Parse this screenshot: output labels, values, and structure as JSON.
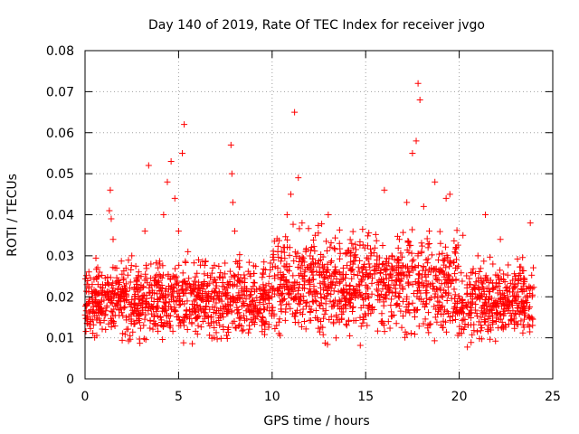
{
  "chart_data": {
    "type": "scatter",
    "title": "Day 140 of 2019, Rate Of TEC Index for receiver jvgo",
    "xlabel": "GPS time / hours",
    "ylabel": "ROTI / TECUs",
    "xlim": [
      0,
      25
    ],
    "ylim": [
      0,
      0.08
    ],
    "xticks": [
      0,
      5,
      10,
      15,
      20,
      25
    ],
    "xtick_labels": [
      "0",
      "5",
      "10",
      "15",
      "20",
      "25"
    ],
    "yticks": [
      0,
      0.01,
      0.02,
      0.03,
      0.04,
      0.05,
      0.06,
      0.07,
      0.08
    ],
    "ytick_labels": [
      "0",
      "0.01",
      "0.02",
      "0.03",
      "0.04",
      "0.05",
      "0.06",
      "0.07",
      "0.08"
    ],
    "grid": true,
    "marker": "+",
    "color": "#ff0000",
    "series": [
      {
        "name": "ROTI",
        "points": [
          [
            0.1,
            0.018
          ],
          [
            0.3,
            0.014
          ],
          [
            0.5,
            0.021
          ],
          [
            0.7,
            0.025
          ],
          [
            0.9,
            0.016
          ],
          [
            1.1,
            0.012
          ],
          [
            1.3,
            0.041
          ],
          [
            1.35,
            0.046
          ],
          [
            1.4,
            0.039
          ],
          [
            1.5,
            0.034
          ],
          [
            1.6,
            0.027
          ],
          [
            1.8,
            0.019
          ],
          [
            2.0,
            0.022
          ],
          [
            2.2,
            0.015
          ],
          [
            2.5,
            0.03
          ],
          [
            2.7,
            0.018
          ],
          [
            3.0,
            0.025
          ],
          [
            3.2,
            0.036
          ],
          [
            3.4,
            0.052
          ],
          [
            3.6,
            0.021
          ],
          [
            3.8,
            0.017
          ],
          [
            4.0,
            0.028
          ],
          [
            4.2,
            0.04
          ],
          [
            4.4,
            0.048
          ],
          [
            4.6,
            0.053
          ],
          [
            4.8,
            0.044
          ],
          [
            5.0,
            0.036
          ],
          [
            5.2,
            0.055
          ],
          [
            5.3,
            0.062
          ],
          [
            5.5,
            0.031
          ],
          [
            5.8,
            0.022
          ],
          [
            6.0,
            0.018
          ],
          [
            6.3,
            0.014
          ],
          [
            6.6,
            0.019
          ],
          [
            7.0,
            0.016
          ],
          [
            7.4,
            0.012
          ],
          [
            7.8,
            0.057
          ],
          [
            7.85,
            0.05
          ],
          [
            7.9,
            0.043
          ],
          [
            8.0,
            0.036
          ],
          [
            8.2,
            0.024
          ],
          [
            8.5,
            0.018
          ],
          [
            8.8,
            0.02
          ],
          [
            9.0,
            0.015
          ],
          [
            9.3,
            0.022
          ],
          [
            9.6,
            0.017
          ],
          [
            10.0,
            0.02
          ],
          [
            10.3,
            0.027
          ],
          [
            10.6,
            0.032
          ],
          [
            10.8,
            0.04
          ],
          [
            11.0,
            0.045
          ],
          [
            11.2,
            0.065
          ],
          [
            11.4,
            0.049
          ],
          [
            11.6,
            0.038
          ],
          [
            11.8,
            0.031
          ],
          [
            12.0,
            0.027
          ],
          [
            12.3,
            0.035
          ],
          [
            12.6,
            0.029
          ],
          [
            13.0,
            0.04
          ],
          [
            13.3,
            0.025
          ],
          [
            13.6,
            0.033
          ],
          [
            14.0,
            0.021
          ],
          [
            14.4,
            0.03
          ],
          [
            14.8,
            0.024
          ],
          [
            15.2,
            0.018
          ],
          [
            15.6,
            0.028
          ],
          [
            16.0,
            0.046
          ],
          [
            16.4,
            0.03
          ],
          [
            16.8,
            0.034
          ],
          [
            17.2,
            0.043
          ],
          [
            17.5,
            0.055
          ],
          [
            17.7,
            0.058
          ],
          [
            17.8,
            0.072
          ],
          [
            17.9,
            0.068
          ],
          [
            18.1,
            0.042
          ],
          [
            18.4,
            0.036
          ],
          [
            18.7,
            0.048
          ],
          [
            19.0,
            0.033
          ],
          [
            19.3,
            0.044
          ],
          [
            19.5,
            0.045
          ],
          [
            19.8,
            0.027
          ],
          [
            20.2,
            0.035
          ],
          [
            20.6,
            0.023
          ],
          [
            21.0,
            0.03
          ],
          [
            21.4,
            0.04
          ],
          [
            21.8,
            0.028
          ],
          [
            22.2,
            0.034
          ],
          [
            22.6,
            0.02
          ],
          [
            23.0,
            0.025
          ],
          [
            23.4,
            0.017
          ],
          [
            23.8,
            0.038
          ],
          [
            23.9,
            0.022
          ]
        ]
      }
    ],
    "background_cloud": {
      "description_note": "dense band of ROTI points",
      "x_range": [
        0,
        24
      ],
      "typical_range": [
        0.006,
        0.032
      ]
    }
  }
}
